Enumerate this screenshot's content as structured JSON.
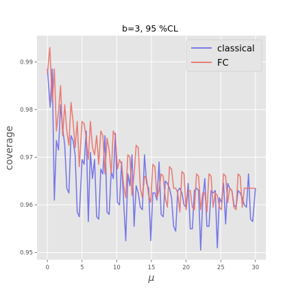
{
  "chart_data": {
    "type": "line",
    "title": "b=3, 95 %CL",
    "xlabel": "μ",
    "ylabel": "coverage",
    "xlim": [
      -1.5,
      31.5
    ],
    "ylim": [
      0.9485,
      0.9955
    ],
    "xticks": [
      0,
      5,
      10,
      15,
      20,
      25,
      30
    ],
    "yticks": [
      0.95,
      0.96,
      0.97,
      0.98,
      0.99
    ],
    "ytick_labels": [
      "0.95",
      "0.96",
      "0.97",
      "0.98",
      "0.99"
    ],
    "grid": true,
    "legend_position": "top-right",
    "background": "#e5e5e5",
    "series": [
      {
        "name": "classical",
        "color": "#6a6ae8",
        "x": [
          0,
          0.4,
          0.7,
          1.0,
          1.3,
          1.6,
          1.9,
          2.2,
          2.5,
          2.8,
          3.1,
          3.4,
          3.7,
          4.0,
          4.3,
          4.6,
          5.0,
          5.3,
          5.6,
          5.9,
          6.2,
          6.5,
          6.8,
          7.1,
          7.4,
          7.7,
          8.0,
          8.3,
          8.6,
          8.9,
          9.2,
          9.5,
          9.8,
          10.1,
          10.4,
          10.7,
          11.0,
          11.3,
          11.6,
          11.9,
          12.2,
          12.5,
          12.8,
          13.1,
          13.4,
          13.7,
          14.0,
          14.3,
          14.6,
          14.9,
          15.2,
          15.5,
          15.8,
          16.1,
          16.4,
          16.7,
          17.0,
          17.3,
          17.6,
          17.9,
          18.2,
          18.5,
          18.8,
          19.1,
          19.4,
          19.7,
          20.0,
          20.3,
          20.6,
          20.9,
          21.2,
          21.5,
          21.8,
          22.1,
          22.4,
          22.7,
          23.0,
          23.3,
          23.6,
          23.9,
          24.2,
          24.5,
          24.8,
          25.1,
          25.4,
          25.7,
          26.0,
          26.3,
          26.6,
          26.9,
          27.2,
          27.5,
          27.8,
          28.1,
          28.4,
          28.7,
          29.0,
          29.3,
          29.6,
          30.0
        ],
        "y": [
          0.9885,
          0.9805,
          0.9885,
          0.961,
          0.9735,
          0.9715,
          0.981,
          0.976,
          0.9725,
          0.9635,
          0.9625,
          0.9745,
          0.9735,
          0.9705,
          0.9585,
          0.9575,
          0.9695,
          0.9685,
          0.9755,
          0.9565,
          0.971,
          0.9655,
          0.9695,
          0.9575,
          0.957,
          0.9675,
          0.9665,
          0.9745,
          0.9585,
          0.958,
          0.967,
          0.9655,
          0.975,
          0.9605,
          0.96,
          0.969,
          0.9605,
          0.9525,
          0.9665,
          0.964,
          0.9705,
          0.9555,
          0.964,
          0.9625,
          0.9595,
          0.959,
          0.9705,
          0.9645,
          0.9635,
          0.9525,
          0.9625,
          0.9625,
          0.961,
          0.969,
          0.958,
          0.9575,
          0.965,
          0.9645,
          0.9635,
          0.9615,
          0.9555,
          0.9545,
          0.963,
          0.9635,
          0.9625,
          0.96,
          0.9595,
          0.9645,
          0.955,
          0.955,
          0.963,
          0.9635,
          0.963,
          0.9505,
          0.961,
          0.9655,
          0.9555,
          0.9555,
          0.963,
          0.9625,
          0.963,
          0.951,
          0.9615,
          0.9605,
          0.9645,
          0.956,
          0.9645,
          0.9635,
          0.963,
          0.96,
          0.9595,
          0.963,
          0.9625,
          0.9615,
          0.96,
          0.9595,
          0.9665,
          0.957,
          0.9565,
          0.9635
        ]
      },
      {
        "name": "FC",
        "color": "#e8706a",
        "x": [
          0,
          0.35,
          0.7,
          1.0,
          1.3,
          1.6,
          1.9,
          2.2,
          2.5,
          2.8,
          3.1,
          3.4,
          3.7,
          4.0,
          4.3,
          4.6,
          5.0,
          5.3,
          5.6,
          5.9,
          6.2,
          6.5,
          6.8,
          7.1,
          7.4,
          7.7,
          8.0,
          8.3,
          8.6,
          8.9,
          9.2,
          9.5,
          9.8,
          10.1,
          10.4,
          10.7,
          11.0,
          11.3,
          11.6,
          11.9,
          12.2,
          12.5,
          12.8,
          13.1,
          13.4,
          13.7,
          14.0,
          14.3,
          14.6,
          14.9,
          15.2,
          15.5,
          15.8,
          16.1,
          16.4,
          16.7,
          17.0,
          17.3,
          17.6,
          17.9,
          18.2,
          18.5,
          18.8,
          19.1,
          19.4,
          19.7,
          20.0,
          20.3,
          20.6,
          20.9,
          21.2,
          21.5,
          21.8,
          22.1,
          22.4,
          22.7,
          23.0,
          23.3,
          23.6,
          23.9,
          24.2,
          24.5,
          24.8,
          25.1,
          25.4,
          25.7,
          26.0,
          26.3,
          26.6,
          26.9,
          27.2,
          27.5,
          27.8,
          28.1,
          28.4,
          28.7,
          29.0,
          29.3,
          29.6,
          30.0
        ],
        "y": [
          0.9875,
          0.993,
          0.9815,
          0.9885,
          0.9755,
          0.9795,
          0.985,
          0.9745,
          0.981,
          0.9755,
          0.9725,
          0.9815,
          0.9775,
          0.972,
          0.9775,
          0.968,
          0.9775,
          0.977,
          0.974,
          0.9695,
          0.9775,
          0.972,
          0.9705,
          0.9745,
          0.9685,
          0.9755,
          0.9745,
          0.9665,
          0.974,
          0.9715,
          0.9665,
          0.9755,
          0.9745,
          0.9675,
          0.9695,
          0.9685,
          0.964,
          0.9615,
          0.9705,
          0.97,
          0.962,
          0.9665,
          0.9725,
          0.972,
          0.9635,
          0.9615,
          0.966,
          0.9655,
          0.962,
          0.9605,
          0.9685,
          0.968,
          0.9615,
          0.963,
          0.9665,
          0.966,
          0.9615,
          0.9595,
          0.968,
          0.9675,
          0.9635,
          0.9635,
          0.9625,
          0.9585,
          0.967,
          0.9665,
          0.959,
          0.963,
          0.963,
          0.9595,
          0.959,
          0.9665,
          0.966,
          0.959,
          0.9625,
          0.9625,
          0.9585,
          0.9665,
          0.966,
          0.9595,
          0.9625,
          0.962,
          0.9595,
          0.959,
          0.9665,
          0.966,
          0.9605,
          0.9635,
          0.963,
          0.9595,
          0.959,
          0.9665,
          0.966,
          0.9595,
          0.9635,
          0.9635,
          0.9635,
          0.9635,
          0.9635,
          0.9635
        ]
      }
    ]
  }
}
